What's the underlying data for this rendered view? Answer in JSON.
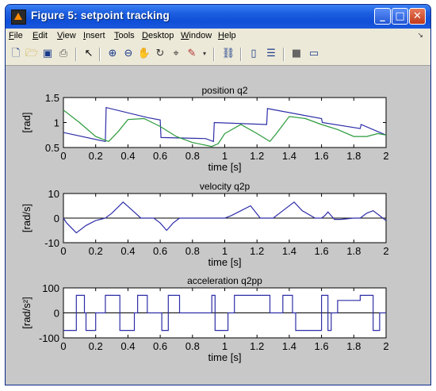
{
  "window": {
    "title": "Figure 5: setpoint tracking"
  },
  "menu": {
    "items": [
      "File",
      "Edit",
      "View",
      "Insert",
      "Tools",
      "Desktop",
      "Window",
      "Help"
    ]
  },
  "toolbar": {
    "icons": [
      "new-figure-icon",
      "open-icon",
      "save-icon",
      "print-icon",
      "pointer-icon",
      "zoom-in-icon",
      "zoom-out-icon",
      "pan-icon",
      "rotate-icon",
      "data-cursor-icon",
      "brush-icon",
      "link-icon",
      "colorbar-icon",
      "legend-icon",
      "hide-plot-tools-icon",
      "show-plot-tools-icon"
    ]
  },
  "chart_data": [
    {
      "type": "line",
      "title": "position q2",
      "xlabel": "time [s]",
      "ylabel": "[rad]",
      "xlim": [
        0,
        2
      ],
      "ylim": [
        0.5,
        1.5
      ],
      "xticks": [
        "0",
        "0.2",
        "0.4",
        "0.6",
        "0.8",
        "1",
        "1.2",
        "1.4",
        "1.6",
        "1.8",
        "2"
      ],
      "yticks": [
        "0.5",
        "1",
        "1.5"
      ],
      "series": [
        {
          "color": "#2e2ea8",
          "x": [
            0,
            0.26,
            0.265,
            0.52,
            0.6,
            0.605,
            0.88,
            0.93,
            0.935,
            1.26,
            1.265,
            1.6,
            1.605,
            1.84,
            1.845,
            2.0
          ],
          "y": [
            0.8,
            0.62,
            1.3,
            1.1,
            1.05,
            0.7,
            0.68,
            0.62,
            1.0,
            0.96,
            1.28,
            1.08,
            1.0,
            0.88,
            0.96,
            0.75
          ]
        },
        {
          "color": "#2a9a3a",
          "x": [
            0,
            0.1,
            0.2,
            0.28,
            0.34,
            0.4,
            0.5,
            0.6,
            0.7,
            0.8,
            0.92,
            0.96,
            1.0,
            1.1,
            1.2,
            1.28,
            1.32,
            1.4,
            1.5,
            1.6,
            1.7,
            1.8,
            1.88,
            1.95,
            2.0
          ],
          "y": [
            1.25,
            1.0,
            0.72,
            0.62,
            0.82,
            1.06,
            1.08,
            0.92,
            0.72,
            0.6,
            0.52,
            0.58,
            0.78,
            0.96,
            0.78,
            0.62,
            0.78,
            1.12,
            1.08,
            0.96,
            0.86,
            0.72,
            0.72,
            0.78,
            0.75
          ]
        }
      ]
    },
    {
      "type": "line",
      "title": "velocity q2p",
      "xlabel": "time [s]",
      "ylabel": "[rad/s]",
      "xlim": [
        0,
        2
      ],
      "ylim": [
        -10,
        10
      ],
      "xticks": [
        "0",
        "0.2",
        "0.4",
        "0.6",
        "0.8",
        "1",
        "1.2",
        "1.4",
        "1.6",
        "1.8",
        "2"
      ],
      "yticks": [
        "-10",
        "0",
        "10"
      ],
      "series": [
        {
          "color": "#2e2ea8",
          "x": [
            0,
            0.02,
            0.08,
            0.14,
            0.2,
            0.26,
            0.3,
            0.37,
            0.43,
            0.48,
            0.56,
            0.6,
            0.64,
            0.68,
            0.72,
            0.86,
            0.92,
            0.96,
            1.0,
            1.04,
            1.1,
            1.16,
            1.22,
            1.3,
            1.36,
            1.43,
            1.48,
            1.56,
            1.6,
            1.62,
            1.64,
            1.66,
            1.68,
            1.72,
            1.8,
            1.84,
            1.88,
            1.92,
            1.96,
            2.0
          ],
          "y": [
            0,
            -2,
            -6,
            -3,
            -1,
            0,
            2,
            6.5,
            3,
            0,
            0,
            -2,
            -5,
            -2,
            0,
            0,
            0,
            0,
            0,
            1,
            3,
            5,
            0,
            0,
            3,
            6.5,
            3,
            0,
            0,
            1,
            2.5,
            1,
            -0.5,
            -0.5,
            0,
            0,
            2,
            3,
            1,
            -1
          ]
        }
      ]
    },
    {
      "type": "line",
      "title": "acceleration q2pp",
      "xlabel": "time [s]",
      "ylabel": "[rad/s²]",
      "xlim": [
        0,
        2
      ],
      "ylim": [
        -100,
        100
      ],
      "xticks": [
        "0",
        "0.2",
        "0.4",
        "0.6",
        "0.8",
        "1",
        "1.2",
        "1.4",
        "1.6",
        "1.8",
        "2"
      ],
      "yticks": [
        "-100",
        "0",
        "100"
      ],
      "series": [
        {
          "color": "#2e2ea8",
          "x": [
            0,
            0.08,
            0.08,
            0.13,
            0.13,
            0.14,
            0.14,
            0.2,
            0.2,
            0.26,
            0.26,
            0.35,
            0.35,
            0.44,
            0.44,
            0.46,
            0.46,
            0.52,
            0.52,
            0.61,
            0.61,
            0.65,
            0.65,
            0.72,
            0.72,
            0.92,
            0.92,
            0.94,
            0.94,
            1.02,
            1.02,
            1.06,
            1.06,
            1.28,
            1.28,
            1.36,
            1.36,
            1.42,
            1.42,
            1.44,
            1.44,
            1.6,
            1.6,
            1.64,
            1.64,
            1.66,
            1.66,
            1.7,
            1.7,
            1.84,
            1.84,
            1.92,
            1.92,
            1.96,
            1.96,
            2.0
          ],
          "y": [
            -70,
            -70,
            70,
            70,
            0,
            0,
            -70,
            -70,
            0,
            0,
            70,
            70,
            -70,
            -70,
            0,
            0,
            70,
            70,
            0,
            0,
            -70,
            -70,
            70,
            70,
            0,
            0,
            70,
            70,
            -70,
            -70,
            0,
            0,
            70,
            70,
            0,
            0,
            70,
            70,
            0,
            0,
            -70,
            -70,
            70,
            70,
            -70,
            -70,
            0,
            0,
            50,
            50,
            70,
            70,
            -70,
            -70,
            0,
            0
          ]
        }
      ]
    }
  ]
}
